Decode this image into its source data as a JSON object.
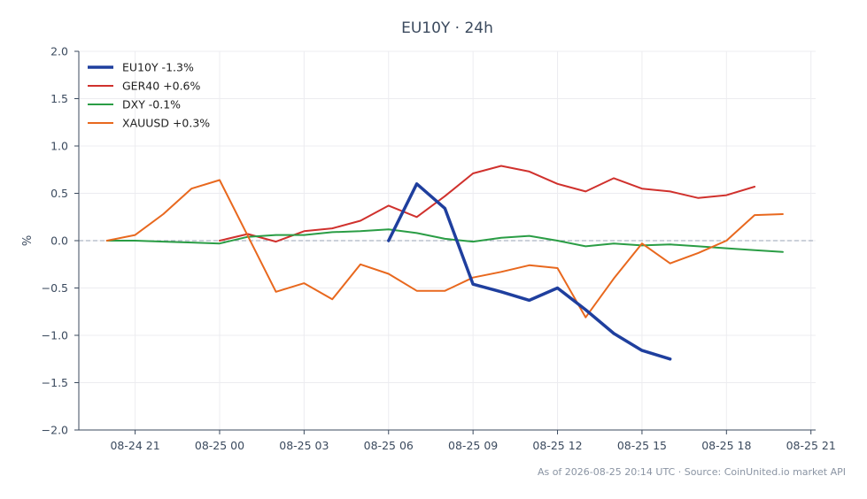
{
  "chart_data": {
    "type": "line",
    "title": "EU10Y · 24h",
    "xlabel": "",
    "ylabel": "%",
    "ylim": [
      -2.0,
      2.0
    ],
    "yticks": [
      -2.0,
      -1.5,
      -1.0,
      -0.5,
      0.0,
      0.5,
      1.0,
      1.5,
      2.0
    ],
    "ytick_labels": [
      "−2.0",
      "−1.5",
      "−1.0",
      "−0.5",
      "0.0",
      "0.5",
      "1.0",
      "1.5",
      "2.0"
    ],
    "xlim": [
      "2026-08-24 19:00",
      "2026-08-25 21:10"
    ],
    "xticks": [
      "2026-08-24 21:00",
      "2026-08-25 00:00",
      "2026-08-25 03:00",
      "2026-08-25 06:00",
      "2026-08-25 09:00",
      "2026-08-25 12:00",
      "2026-08-25 15:00",
      "2026-08-25 18:00",
      "2026-08-25 21:00"
    ],
    "xtick_labels": [
      "08-24 21",
      "08-25 00",
      "08-25 03",
      "08-25 06",
      "08-25 09",
      "08-25 12",
      "08-25 15",
      "08-25 18",
      "08-25 21"
    ],
    "grid": true,
    "zero_line": true,
    "legend": "top-left",
    "series": [
      {
        "name": "EU10Y -1.3%",
        "color": "#1f3f9e",
        "line_weight": "thick",
        "points": [
          [
            "2026-08-25 06:00",
            0.0
          ],
          [
            "2026-08-25 07:00",
            0.6
          ],
          [
            "2026-08-25 08:00",
            0.34
          ],
          [
            "2026-08-25 09:00",
            -0.46
          ],
          [
            "2026-08-25 10:00",
            -0.54
          ],
          [
            "2026-08-25 11:00",
            -0.63
          ],
          [
            "2026-08-25 12:00",
            -0.5
          ],
          [
            "2026-08-25 13:00",
            -0.73
          ],
          [
            "2026-08-25 14:00",
            -0.98
          ],
          [
            "2026-08-25 15:00",
            -1.16
          ],
          [
            "2026-08-25 16:00",
            -1.25
          ]
        ]
      },
      {
        "name": "GER40 +0.6%",
        "color": "#d0312d",
        "line_weight": "normal",
        "points": [
          [
            "2026-08-25 00:00",
            0.0
          ],
          [
            "2026-08-25 01:00",
            0.07
          ],
          [
            "2026-08-25 02:00",
            -0.01
          ],
          [
            "2026-08-25 03:00",
            0.1
          ],
          [
            "2026-08-25 04:00",
            0.13
          ],
          [
            "2026-08-25 05:00",
            0.21
          ],
          [
            "2026-08-25 06:00",
            0.37
          ],
          [
            "2026-08-25 07:00",
            0.25
          ],
          [
            "2026-08-25 08:00",
            0.47
          ],
          [
            "2026-08-25 09:00",
            0.71
          ],
          [
            "2026-08-25 10:00",
            0.79
          ],
          [
            "2026-08-25 11:00",
            0.73
          ],
          [
            "2026-08-25 12:00",
            0.6
          ],
          [
            "2026-08-25 13:00",
            0.52
          ],
          [
            "2026-08-25 14:00",
            0.66
          ],
          [
            "2026-08-25 15:00",
            0.55
          ],
          [
            "2026-08-25 16:00",
            0.52
          ],
          [
            "2026-08-25 17:00",
            0.45
          ],
          [
            "2026-08-25 18:00",
            0.48
          ],
          [
            "2026-08-25 19:00",
            0.57
          ]
        ]
      },
      {
        "name": "DXY -0.1%",
        "color": "#2a9d45",
        "line_weight": "normal",
        "points": [
          [
            "2026-08-24 20:00",
            0.0
          ],
          [
            "2026-08-24 21:00",
            0.0
          ],
          [
            "2026-08-24 22:00",
            -0.01
          ],
          [
            "2026-08-24 23:00",
            -0.02
          ],
          [
            "2026-08-25 00:00",
            -0.03
          ],
          [
            "2026-08-25 01:00",
            0.04
          ],
          [
            "2026-08-25 02:00",
            0.06
          ],
          [
            "2026-08-25 03:00",
            0.06
          ],
          [
            "2026-08-25 04:00",
            0.09
          ],
          [
            "2026-08-25 05:00",
            0.1
          ],
          [
            "2026-08-25 06:00",
            0.12
          ],
          [
            "2026-08-25 07:00",
            0.08
          ],
          [
            "2026-08-25 08:00",
            0.02
          ],
          [
            "2026-08-25 09:00",
            -0.01
          ],
          [
            "2026-08-25 10:00",
            0.03
          ],
          [
            "2026-08-25 11:00",
            0.05
          ],
          [
            "2026-08-25 12:00",
            0.0
          ],
          [
            "2026-08-25 13:00",
            -0.06
          ],
          [
            "2026-08-25 14:00",
            -0.03
          ],
          [
            "2026-08-25 15:00",
            -0.05
          ],
          [
            "2026-08-25 16:00",
            -0.04
          ],
          [
            "2026-08-25 17:00",
            -0.06
          ],
          [
            "2026-08-25 18:00",
            -0.08
          ],
          [
            "2026-08-25 19:00",
            -0.1
          ],
          [
            "2026-08-25 20:00",
            -0.12
          ]
        ]
      },
      {
        "name": "XAUUSD +0.3%",
        "color": "#e8681e",
        "line_weight": "normal",
        "points": [
          [
            "2026-08-24 20:00",
            0.0
          ],
          [
            "2026-08-24 21:00",
            0.06
          ],
          [
            "2026-08-24 22:00",
            0.28
          ],
          [
            "2026-08-24 23:00",
            0.55
          ],
          [
            "2026-08-25 00:00",
            0.64
          ],
          [
            "2026-08-25 01:00",
            0.05
          ],
          [
            "2026-08-25 02:00",
            -0.54
          ],
          [
            "2026-08-25 03:00",
            -0.45
          ],
          [
            "2026-08-25 04:00",
            -0.62
          ],
          [
            "2026-08-25 05:00",
            -0.25
          ],
          [
            "2026-08-25 06:00",
            -0.35
          ],
          [
            "2026-08-25 07:00",
            -0.53
          ],
          [
            "2026-08-25 08:00",
            -0.53
          ],
          [
            "2026-08-25 09:00",
            -0.39
          ],
          [
            "2026-08-25 10:00",
            -0.33
          ],
          [
            "2026-08-25 11:00",
            -0.26
          ],
          [
            "2026-08-25 12:00",
            -0.29
          ],
          [
            "2026-08-25 13:00",
            -0.81
          ],
          [
            "2026-08-25 14:00",
            -0.4
          ],
          [
            "2026-08-25 15:00",
            -0.03
          ],
          [
            "2026-08-25 16:00",
            -0.24
          ],
          [
            "2026-08-25 17:00",
            -0.13
          ],
          [
            "2026-08-25 18:00",
            0.0
          ],
          [
            "2026-08-25 19:00",
            0.27
          ],
          [
            "2026-08-25 20:00",
            0.28
          ]
        ]
      }
    ]
  },
  "footer": "As of 2026-08-25 20:14 UTC · Source: CoinUnited.io market API"
}
